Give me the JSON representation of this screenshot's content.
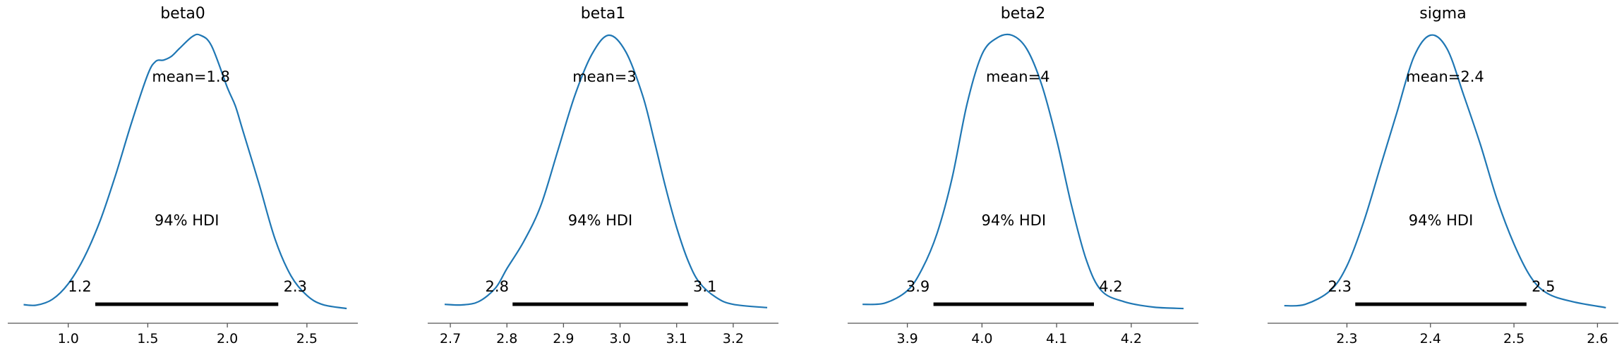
{
  "chart_data": [
    {
      "type": "area",
      "title": "beta0",
      "mean_label": "mean=1.8",
      "hdi_label": "94% HDI",
      "hdi": {
        "low": 1.17,
        "high": 2.32,
        "low_label": "1.2",
        "high_label": "2.3"
      },
      "xlim": [
        0.62,
        2.82
      ],
      "ticks": [
        1.0,
        1.5,
        2.0,
        2.5
      ],
      "tick_labels": [
        "1.0",
        "1.5",
        "2.0",
        "2.5"
      ],
      "density": [
        [
          0.72,
          0.02
        ],
        [
          0.8,
          0.018
        ],
        [
          0.9,
          0.04
        ],
        [
          1.0,
          0.1
        ],
        [
          1.1,
          0.2
        ],
        [
          1.2,
          0.34
        ],
        [
          1.3,
          0.52
        ],
        [
          1.4,
          0.72
        ],
        [
          1.5,
          0.9
        ],
        [
          1.55,
          0.95
        ],
        [
          1.6,
          0.955
        ],
        [
          1.65,
          0.97
        ],
        [
          1.7,
          1.0
        ],
        [
          1.78,
          1.045
        ],
        [
          1.83,
          1.05
        ],
        [
          1.9,
          1.01
        ],
        [
          2.0,
          0.85
        ],
        [
          2.05,
          0.78
        ],
        [
          2.1,
          0.68
        ],
        [
          2.2,
          0.48
        ],
        [
          2.3,
          0.27
        ],
        [
          2.4,
          0.13
        ],
        [
          2.5,
          0.055
        ],
        [
          2.6,
          0.02
        ],
        [
          2.75,
          0.005
        ]
      ]
    },
    {
      "type": "area",
      "title": "beta1",
      "mean_label": "mean=3",
      "hdi_label": "94% HDI",
      "hdi": {
        "low": 2.81,
        "high": 3.12,
        "low_label": "2.8",
        "high_label": "3.1"
      },
      "xlim": [
        2.66,
        3.28
      ],
      "ticks": [
        2.7,
        2.8,
        2.9,
        3.0,
        3.1,
        3.2
      ],
      "tick_labels": [
        "2.7",
        "2.8",
        "2.9",
        "3.0",
        "3.1",
        "3.2"
      ],
      "density": [
        [
          2.69,
          0.02
        ],
        [
          2.72,
          0.018
        ],
        [
          2.75,
          0.03
        ],
        [
          2.78,
          0.08
        ],
        [
          2.8,
          0.15
        ],
        [
          2.83,
          0.25
        ],
        [
          2.86,
          0.38
        ],
        [
          2.89,
          0.58
        ],
        [
          2.92,
          0.78
        ],
        [
          2.95,
          0.93
        ],
        [
          2.98,
          1.0
        ],
        [
          3.01,
          0.94
        ],
        [
          3.04,
          0.78
        ],
        [
          3.06,
          0.62
        ],
        [
          3.08,
          0.45
        ],
        [
          3.1,
          0.3
        ],
        [
          3.12,
          0.18
        ],
        [
          3.14,
          0.1
        ],
        [
          3.17,
          0.045
        ],
        [
          3.2,
          0.02
        ],
        [
          3.26,
          0.008
        ]
      ]
    },
    {
      "type": "area",
      "title": "beta2",
      "mean_label": "mean=4",
      "hdi_label": "94% HDI",
      "hdi": {
        "low": 3.935,
        "high": 4.15,
        "low_label": "3.9",
        "high_label": "4.2"
      },
      "xlim": [
        3.82,
        4.29
      ],
      "ticks": [
        3.9,
        4.0,
        4.1,
        4.2
      ],
      "tick_labels": [
        "3.9",
        "4.0",
        "4.1",
        "4.2"
      ],
      "density": [
        [
          3.84,
          0.02
        ],
        [
          3.87,
          0.025
        ],
        [
          3.9,
          0.07
        ],
        [
          3.92,
          0.15
        ],
        [
          3.94,
          0.28
        ],
        [
          3.96,
          0.48
        ],
        [
          3.98,
          0.75
        ],
        [
          4.0,
          0.93
        ],
        [
          4.02,
          0.99
        ],
        [
          4.04,
          1.0
        ],
        [
          4.06,
          0.95
        ],
        [
          4.08,
          0.82
        ],
        [
          4.1,
          0.62
        ],
        [
          4.12,
          0.38
        ],
        [
          4.14,
          0.18
        ],
        [
          4.16,
          0.07
        ],
        [
          4.19,
          0.03
        ],
        [
          4.23,
          0.01
        ],
        [
          4.27,
          0.005
        ]
      ]
    },
    {
      "type": "area",
      "title": "sigma",
      "mean_label": "mean=2.4",
      "hdi_label": "94% HDI",
      "hdi": {
        "low": 2.31,
        "high": 2.515,
        "low_label": "2.3",
        "high_label": "2.5"
      },
      "xlim": [
        2.205,
        2.625
      ],
      "ticks": [
        2.3,
        2.4,
        2.5,
        2.6
      ],
      "tick_labels": [
        "2.3",
        "2.4",
        "2.5",
        "2.6"
      ],
      "density": [
        [
          2.225,
          0.015
        ],
        [
          2.25,
          0.02
        ],
        [
          2.28,
          0.07
        ],
        [
          2.3,
          0.16
        ],
        [
          2.32,
          0.32
        ],
        [
          2.34,
          0.52
        ],
        [
          2.36,
          0.72
        ],
        [
          2.38,
          0.92
        ],
        [
          2.4,
          1.0
        ],
        [
          2.42,
          0.95
        ],
        [
          2.44,
          0.78
        ],
        [
          2.46,
          0.6
        ],
        [
          2.48,
          0.4
        ],
        [
          2.5,
          0.24
        ],
        [
          2.52,
          0.12
        ],
        [
          2.54,
          0.06
        ],
        [
          2.57,
          0.03
        ],
        [
          2.61,
          0.008
        ]
      ]
    }
  ],
  "style": {
    "line_color": "#1f77b4",
    "hdi_color": "#000000",
    "axis_color": "#555555"
  }
}
